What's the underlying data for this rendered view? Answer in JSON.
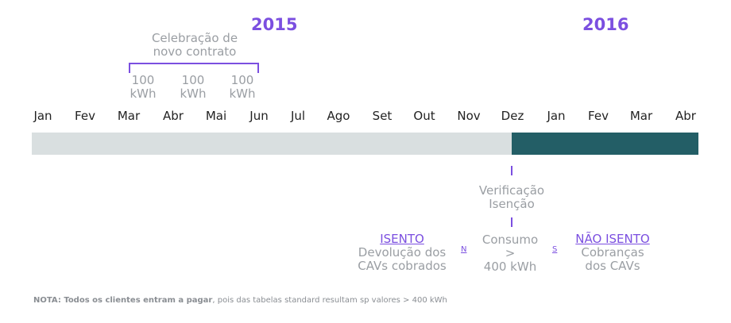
{
  "years": {
    "y2015": "2015",
    "y2016": "2016"
  },
  "contract": {
    "title_line1": "Celebração de",
    "title_line2": "novo contrato",
    "readings": [
      {
        "value": "100",
        "unit": "kWh"
      },
      {
        "value": "100",
        "unit": "kWh"
      },
      {
        "value": "100",
        "unit": "kWh"
      }
    ]
  },
  "months": [
    "Jan",
    "Fev",
    "Mar",
    "Abr",
    "Mai",
    "Jun",
    "Jul",
    "Ago",
    "Set",
    "Out",
    "Nov",
    "Dez",
    "Jan",
    "Fev",
    "Mar",
    "Abr"
  ],
  "verification": {
    "line1": "Verificação",
    "line2": "Isenção"
  },
  "consumption": {
    "line1": "Consumo",
    "line2": ">",
    "line3": "400 kWh"
  },
  "branch_no": {
    "label": "N",
    "title": "ISENTO",
    "line1": "Devolução dos",
    "line2": "CAVs cobrados"
  },
  "branch_yes": {
    "label": "S",
    "title": "NÃO ISENTO",
    "line1": "Cobranças",
    "line2": "dos CAVs"
  },
  "note": {
    "bold": "NOTA: Todos os clientes entram a pagar",
    "rest": ", pois das tabelas standard resultam sp valores  > 400 kWh"
  },
  "colors": {
    "accent": "#7b4fe0",
    "bar_light": "#d9dfe0",
    "bar_dark": "#235e66",
    "text_gray": "#9a9ea3"
  }
}
